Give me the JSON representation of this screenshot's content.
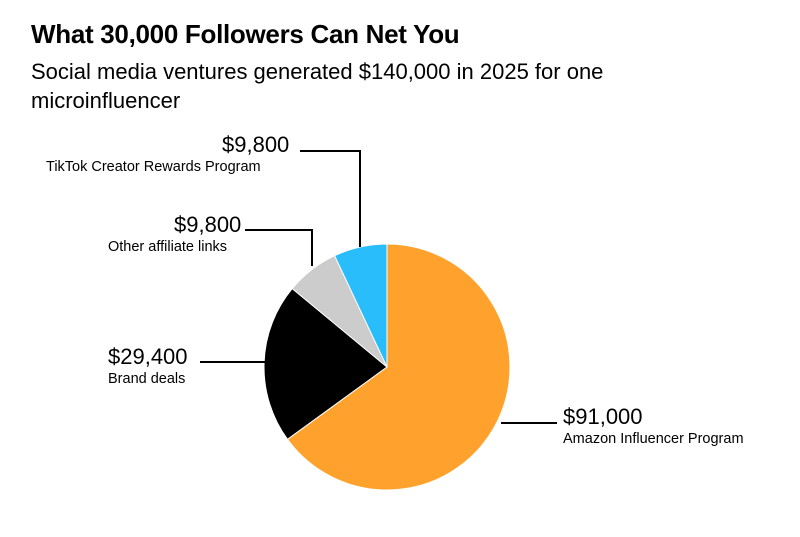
{
  "chart_data": {
    "type": "pie",
    "title": "What 30,000 Followers Can Net You",
    "subtitle": "Social media ventures generated $140,000 in 2025 for one microinfluencer",
    "slices": [
      {
        "label": "Amazon Influencer Program",
        "value": 91000,
        "value_label": "$91,000",
        "color": "#ffa22d"
      },
      {
        "label": "Brand deals",
        "value": 29400,
        "value_label": "$29,400",
        "color": "#000000"
      },
      {
        "label": "Other affiliate links",
        "value": 9800,
        "value_label": "$9,800",
        "color": "#cccccc"
      },
      {
        "label": "TikTok Creator Rewards Program",
        "value": 9800,
        "value_label": "$9,800",
        "color": "#29bdfb"
      }
    ],
    "start_angle": "12 o'clock",
    "direction": "clockwise",
    "total": 140000
  }
}
